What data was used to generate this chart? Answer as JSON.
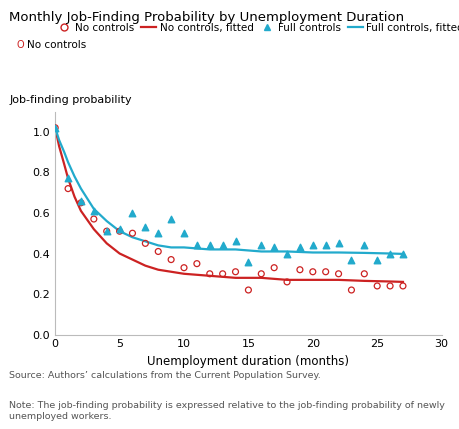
{
  "title": "Monthly Job-Finding Probability by Unemployment Duration",
  "ylabel": "Job-finding probability",
  "xlabel": "Unemployment duration (months)",
  "source": "Source: Authors’ calculations from the Current Population Survey.",
  "note": "Note: The job-finding probability is expressed relative to the job-finding probability of newly\nunemployed workers.",
  "xlim": [
    0,
    30
  ],
  "ylim": [
    0,
    1.1
  ],
  "xticks": [
    0,
    5,
    10,
    15,
    20,
    25,
    30
  ],
  "yticks": [
    0,
    0.2,
    0.4,
    0.6,
    0.8,
    1.0
  ],
  "no_controls_x": [
    0,
    1,
    2,
    3,
    4,
    5,
    6,
    7,
    8,
    9,
    10,
    11,
    12,
    13,
    14,
    15,
    16,
    17,
    18,
    19,
    20,
    21,
    22,
    23,
    24,
    25,
    26,
    27
  ],
  "no_controls_y": [
    1.02,
    0.72,
    0.65,
    0.57,
    0.51,
    0.51,
    0.5,
    0.45,
    0.41,
    0.37,
    0.33,
    0.35,
    0.3,
    0.3,
    0.31,
    0.22,
    0.3,
    0.33,
    0.26,
    0.32,
    0.31,
    0.31,
    0.3,
    0.22,
    0.3,
    0.24,
    0.24,
    0.24
  ],
  "full_controls_x": [
    0,
    1,
    2,
    3,
    4,
    5,
    6,
    7,
    8,
    9,
    10,
    11,
    12,
    13,
    14,
    15,
    16,
    17,
    18,
    19,
    20,
    21,
    22,
    23,
    24,
    25,
    26,
    27
  ],
  "full_controls_y": [
    1.02,
    0.77,
    0.66,
    0.61,
    0.51,
    0.52,
    0.6,
    0.53,
    0.5,
    0.57,
    0.5,
    0.44,
    0.44,
    0.44,
    0.46,
    0.36,
    0.44,
    0.43,
    0.4,
    0.43,
    0.44,
    0.44,
    0.45,
    0.37,
    0.44,
    0.37,
    0.4,
    0.4
  ],
  "no_controls_color": "#cc2222",
  "full_controls_color": "#22aacc",
  "no_controls_fit_x": [
    0,
    0.3,
    0.7,
    1,
    1.5,
    2,
    3,
    4,
    5,
    6,
    7,
    8,
    9,
    10,
    12,
    14,
    16,
    18,
    20,
    22,
    24,
    26,
    27
  ],
  "no_controls_fit_y": [
    1.02,
    0.93,
    0.84,
    0.77,
    0.68,
    0.61,
    0.52,
    0.45,
    0.4,
    0.37,
    0.34,
    0.32,
    0.31,
    0.3,
    0.29,
    0.28,
    0.28,
    0.27,
    0.27,
    0.27,
    0.265,
    0.262,
    0.26
  ],
  "full_controls_fit_x": [
    0,
    0.3,
    0.7,
    1,
    1.5,
    2,
    3,
    4,
    5,
    6,
    7,
    8,
    9,
    10,
    12,
    14,
    16,
    18,
    20,
    22,
    24,
    26,
    27
  ],
  "full_controls_fit_y": [
    1.02,
    0.96,
    0.9,
    0.85,
    0.78,
    0.72,
    0.62,
    0.56,
    0.51,
    0.48,
    0.46,
    0.44,
    0.43,
    0.43,
    0.42,
    0.42,
    0.41,
    0.41,
    0.405,
    0.405,
    0.403,
    0.4,
    0.398
  ]
}
